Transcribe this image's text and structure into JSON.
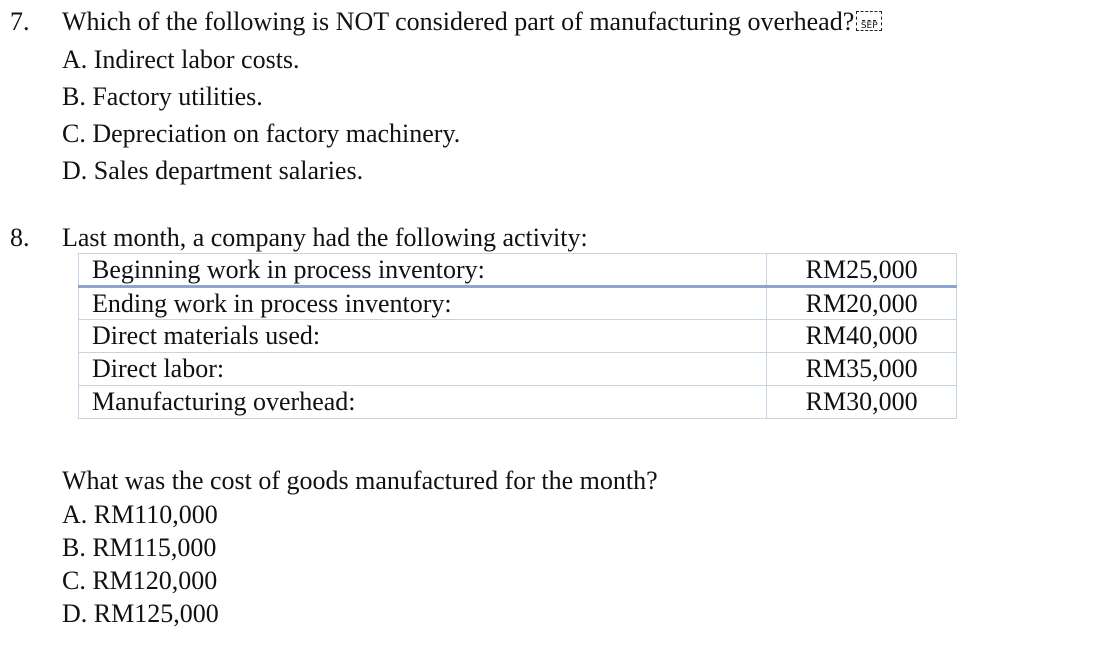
{
  "q7": {
    "number": "7.",
    "stem": "Which of the following is NOT considered part of manufacturing overhead?",
    "sep_glyph": "SEP",
    "options": [
      "A. Indirect labor costs.",
      "B. Factory utilities.",
      "C. Depreciation on factory machinery.",
      "D. Sales department salaries."
    ]
  },
  "q8": {
    "number": "8.",
    "stem": "Last month, a company had the following activity:",
    "table": [
      {
        "label": "Beginning work in process inventory:",
        "value": "RM25,000"
      },
      {
        "label": "Ending work in process inventory:",
        "value": "RM20,000"
      },
      {
        "label": "Direct materials used:",
        "value": "RM40,000"
      },
      {
        "label": "Direct labor:",
        "value": "RM35,000"
      },
      {
        "label": "Manufacturing overhead:",
        "value": "RM30,000"
      }
    ],
    "question": "What was the cost of goods manufactured for the month?",
    "options": [
      "A. RM110,000",
      "B. RM115,000",
      "C. RM120,000",
      "D. RM125,000"
    ]
  }
}
